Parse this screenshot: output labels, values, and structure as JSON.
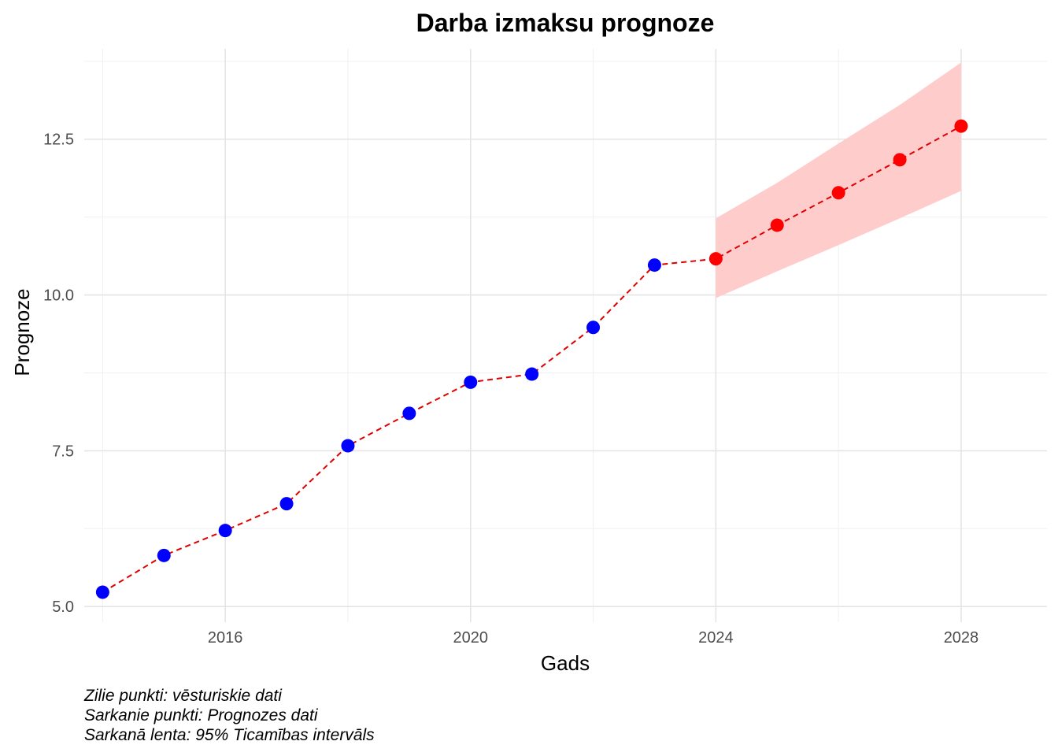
{
  "chart_data": {
    "type": "line",
    "title": "Darba izmaksu prognoze",
    "xlabel": "Gads",
    "ylabel": "Prognoze",
    "xlim": [
      2013.7,
      2029.4
    ],
    "ylim": [
      4.75,
      13.95
    ],
    "x_ticks": [
      2016,
      2020,
      2024,
      2028
    ],
    "y_ticks": [
      5.0,
      7.5,
      10.0,
      12.5
    ],
    "x_tick_labels": [
      "2016",
      "2020",
      "2024",
      "2028"
    ],
    "y_tick_labels": [
      "5.0",
      "7.5",
      "10.0",
      "12.5"
    ],
    "grid": true,
    "line_color": "#e00000",
    "line_style": "dashed",
    "series": [
      {
        "color": "#0000ff",
        "x": [
          2014,
          2015,
          2016,
          2017,
          2018,
          2019,
          2020,
          2021,
          2022,
          2023
        ],
        "y": [
          5.23,
          5.82,
          6.22,
          6.65,
          7.58,
          8.1,
          8.6,
          8.73,
          9.48,
          10.48
        ]
      },
      {
        "color": "#ff0000",
        "x": [
          2024,
          2025,
          2026,
          2027,
          2028
        ],
        "y": [
          10.58,
          11.12,
          11.64,
          12.17,
          12.71
        ],
        "lower": [
          9.95,
          10.38,
          10.8,
          11.23,
          11.67
        ],
        "upper": [
          11.23,
          11.8,
          12.43,
          13.05,
          13.73
        ]
      }
    ],
    "band_color": "#ffcccc",
    "caption": [
      "Zilie punkti: vēsturiskie dati",
      "Sarkanie punkti: Prognozes dati",
      "Sarkanā lenta: 95% Ticamības intervāls"
    ]
  }
}
